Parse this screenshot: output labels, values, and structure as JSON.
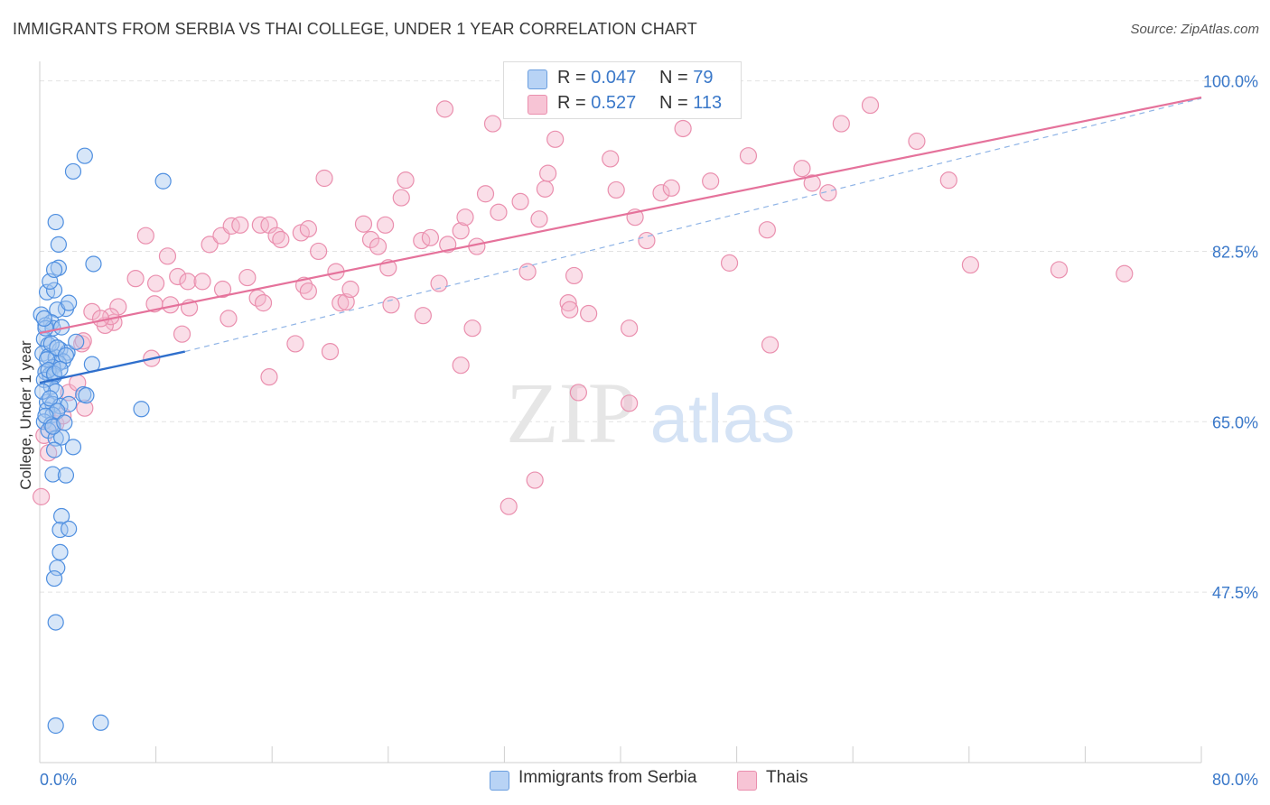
{
  "title": "IMMIGRANTS FROM SERBIA VS THAI COLLEGE, UNDER 1 YEAR CORRELATION CHART",
  "source": "Source: ZipAtlas.com",
  "watermark": {
    "zip": "ZIP",
    "atlas": "atlas"
  },
  "legend_top": [
    {
      "r_label": "R = ",
      "r_value": "0.047",
      "n_label": "N = ",
      "n_value": "79",
      "color": "#4f8fe0"
    },
    {
      "r_label": "R = ",
      "r_value": "0.527",
      "n_label": "N = ",
      "n_value": "113",
      "color": "#ef89aa"
    }
  ],
  "legend_bottom": [
    {
      "label": "Immigrants from Serbia",
      "color": "#4f8fe0"
    },
    {
      "label": "Thais",
      "color": "#ef89aa"
    }
  ],
  "chart_data": {
    "type": "scatter",
    "title": "IMMIGRANTS FROM SERBIA VS THAI COLLEGE, UNDER 1 YEAR CORRELATION CHART",
    "xlabel": "",
    "ylabel": "College, Under 1 year",
    "xlim": [
      0,
      80
    ],
    "ylim": [
      30,
      102
    ],
    "x_tick_labels": [
      "0.0%",
      "80.0%"
    ],
    "y_ticks": [
      47.5,
      65.0,
      82.5,
      100.0
    ],
    "y_tick_labels": [
      "47.5%",
      "65.0%",
      "82.5%",
      "100.0%"
    ],
    "grid": true,
    "legend_position": "top-center",
    "series": [
      {
        "name": "Immigrants from Serbia",
        "color": "#4f8fe0",
        "points": [
          [
            0.1,
            76.0
          ],
          [
            0.5,
            78.3
          ],
          [
            1.0,
            78.5
          ],
          [
            1.3,
            80.8
          ],
          [
            0.7,
            79.4
          ],
          [
            1.8,
            76.6
          ],
          [
            1.2,
            76.5
          ],
          [
            0.8,
            75.2
          ],
          [
            0.4,
            74.9
          ],
          [
            0.9,
            74.6
          ],
          [
            0.3,
            73.5
          ],
          [
            0.6,
            72.9
          ],
          [
            1.4,
            72.4
          ],
          [
            1.9,
            72.1
          ],
          [
            2.5,
            73.2
          ],
          [
            0.2,
            72.0
          ],
          [
            0.6,
            71.7
          ],
          [
            1.1,
            71.6
          ],
          [
            1.6,
            71.2
          ],
          [
            1.3,
            71.0
          ],
          [
            0.9,
            70.6
          ],
          [
            0.4,
            70.1
          ],
          [
            0.7,
            69.8
          ],
          [
            1.0,
            69.7
          ],
          [
            0.3,
            69.3
          ],
          [
            0.8,
            68.6
          ],
          [
            1.1,
            68.1
          ],
          [
            3.0,
            67.8
          ],
          [
            3.2,
            67.7
          ],
          [
            0.5,
            67.0
          ],
          [
            0.9,
            66.8
          ],
          [
            1.4,
            66.6
          ],
          [
            2.0,
            66.8
          ],
          [
            0.5,
            66.2
          ],
          [
            0.9,
            65.7
          ],
          [
            0.3,
            65.0
          ],
          [
            0.8,
            64.7
          ],
          [
            0.6,
            64.1
          ],
          [
            1.1,
            63.3
          ],
          [
            1.5,
            63.4
          ],
          [
            2.3,
            62.4
          ],
          [
            1.0,
            62.1
          ],
          [
            0.9,
            59.6
          ],
          [
            1.8,
            59.5
          ],
          [
            1.5,
            55.3
          ],
          [
            1.4,
            53.9
          ],
          [
            2.0,
            54.0
          ],
          [
            1.4,
            51.6
          ],
          [
            1.2,
            50.0
          ],
          [
            1.0,
            48.9
          ],
          [
            1.1,
            44.4
          ],
          [
            1.1,
            33.8
          ],
          [
            4.2,
            34.1
          ],
          [
            2.3,
            90.7
          ],
          [
            3.1,
            92.3
          ],
          [
            8.5,
            89.7
          ],
          [
            1.1,
            85.5
          ],
          [
            1.3,
            83.2
          ],
          [
            1.0,
            80.6
          ],
          [
            3.7,
            81.2
          ],
          [
            2.0,
            77.2
          ],
          [
            7.0,
            66.3
          ],
          [
            3.6,
            70.9
          ],
          [
            0.4,
            74.6
          ],
          [
            1.5,
            74.7
          ],
          [
            0.8,
            73.0
          ],
          [
            1.2,
            72.6
          ],
          [
            0.5,
            71.4
          ],
          [
            1.8,
            71.8
          ],
          [
            0.6,
            70.3
          ],
          [
            1.0,
            69.9
          ],
          [
            1.4,
            70.4
          ],
          [
            0.2,
            68.1
          ],
          [
            0.7,
            67.4
          ],
          [
            1.2,
            66.1
          ],
          [
            0.4,
            65.6
          ],
          [
            0.9,
            64.5
          ],
          [
            1.7,
            64.9
          ],
          [
            0.3,
            75.6
          ]
        ]
      },
      {
        "name": "Thais",
        "color": "#ef89aa",
        "points": [
          [
            0.1,
            57.3
          ],
          [
            0.6,
            61.8
          ],
          [
            0.3,
            63.6
          ],
          [
            1.1,
            64.8
          ],
          [
            1.6,
            65.6
          ],
          [
            3.1,
            66.4
          ],
          [
            2.0,
            68.0
          ],
          [
            2.6,
            69.0
          ],
          [
            2.9,
            73.0
          ],
          [
            7.7,
            71.5
          ],
          [
            7.9,
            77.1
          ],
          [
            8.8,
            82.0
          ],
          [
            7.3,
            84.1
          ],
          [
            6.6,
            79.7
          ],
          [
            5.4,
            76.8
          ],
          [
            5.1,
            75.2
          ],
          [
            4.5,
            74.9
          ],
          [
            4.9,
            75.8
          ],
          [
            3.6,
            76.3
          ],
          [
            4.2,
            75.6
          ],
          [
            8.0,
            79.2
          ],
          [
            9.5,
            79.9
          ],
          [
            10.3,
            76.7
          ],
          [
            10.2,
            79.4
          ],
          [
            11.2,
            79.4
          ],
          [
            11.7,
            83.2
          ],
          [
            12.5,
            84.1
          ],
          [
            13.2,
            85.1
          ],
          [
            13.8,
            85.2
          ],
          [
            14.3,
            79.8
          ],
          [
            15.0,
            77.7
          ],
          [
            15.4,
            77.2
          ],
          [
            15.2,
            85.2
          ],
          [
            15.8,
            85.2
          ],
          [
            16.3,
            84.1
          ],
          [
            16.6,
            83.7
          ],
          [
            18.0,
            84.4
          ],
          [
            18.2,
            79.0
          ],
          [
            18.5,
            78.4
          ],
          [
            17.6,
            73.0
          ],
          [
            15.8,
            69.6
          ],
          [
            9.0,
            77.0
          ],
          [
            9.8,
            74.0
          ],
          [
            12.6,
            78.6
          ],
          [
            13.0,
            75.6
          ],
          [
            18.5,
            84.8
          ],
          [
            19.2,
            82.5
          ],
          [
            20.4,
            80.4
          ],
          [
            19.6,
            90.0
          ],
          [
            20.0,
            72.2
          ],
          [
            20.7,
            77.2
          ],
          [
            21.1,
            77.3
          ],
          [
            21.4,
            78.6
          ],
          [
            22.3,
            85.3
          ],
          [
            22.8,
            83.7
          ],
          [
            23.3,
            83.0
          ],
          [
            23.8,
            85.2
          ],
          [
            24.0,
            80.8
          ],
          [
            24.2,
            77.0
          ],
          [
            24.9,
            88.0
          ],
          [
            25.2,
            89.8
          ],
          [
            26.3,
            83.6
          ],
          [
            26.9,
            83.9
          ],
          [
            26.4,
            75.9
          ],
          [
            27.5,
            79.2
          ],
          [
            27.9,
            97.1
          ],
          [
            28.1,
            83.2
          ],
          [
            29.0,
            84.6
          ],
          [
            29.3,
            86.0
          ],
          [
            29.0,
            70.8
          ],
          [
            29.8,
            74.6
          ],
          [
            30.1,
            83.0
          ],
          [
            30.7,
            88.4
          ],
          [
            31.2,
            95.6
          ],
          [
            31.6,
            86.5
          ],
          [
            33.1,
            87.6
          ],
          [
            34.4,
            85.8
          ],
          [
            34.8,
            88.9
          ],
          [
            35.0,
            90.5
          ],
          [
            35.5,
            94.0
          ],
          [
            33.6,
            80.4
          ],
          [
            34.1,
            59.0
          ],
          [
            32.3,
            56.3
          ],
          [
            36.8,
            80.0
          ],
          [
            36.4,
            77.2
          ],
          [
            36.5,
            76.5
          ],
          [
            37.8,
            76.1
          ],
          [
            39.3,
            92.0
          ],
          [
            39.7,
            88.8
          ],
          [
            41.8,
            83.6
          ],
          [
            40.6,
            74.6
          ],
          [
            41.0,
            86.0
          ],
          [
            42.8,
            88.5
          ],
          [
            43.5,
            89.0
          ],
          [
            44.3,
            95.1
          ],
          [
            46.2,
            89.7
          ],
          [
            48.8,
            92.3
          ],
          [
            50.3,
            72.9
          ],
          [
            50.1,
            84.7
          ],
          [
            47.5,
            81.3
          ],
          [
            52.5,
            91.0
          ],
          [
            53.2,
            89.5
          ],
          [
            54.3,
            88.5
          ],
          [
            55.2,
            95.6
          ],
          [
            57.2,
            97.5
          ],
          [
            60.4,
            93.8
          ],
          [
            62.6,
            89.8
          ],
          [
            64.1,
            81.1
          ],
          [
            70.2,
            80.6
          ],
          [
            74.7,
            80.2
          ],
          [
            37.1,
            68.0
          ],
          [
            40.6,
            66.9
          ],
          [
            3.0,
            73.3
          ]
        ]
      }
    ],
    "trend_lines": [
      {
        "series": "Immigrants from Serbia",
        "solid_x": [
          0,
          10
        ],
        "solid_y": [
          69.0,
          72.2
        ],
        "dashed_x": [
          10,
          80
        ],
        "dashed_y": [
          72.2,
          98.2
        ]
      },
      {
        "series": "Thais",
        "x": [
          0,
          80
        ],
        "y": [
          74.1,
          98.3
        ]
      }
    ]
  }
}
